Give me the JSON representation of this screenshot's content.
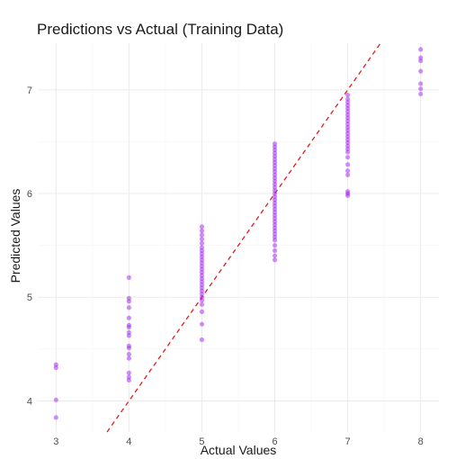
{
  "chart_data": {
    "type": "scatter",
    "title": "Predictions vs Actual (Training Data)",
    "xlabel": "Actual Values",
    "ylabel": "Predicted Values",
    "xlim": [
      2.75,
      8.25
    ],
    "ylim": [
      3.7,
      7.45
    ],
    "xticks": [
      3,
      4,
      5,
      6,
      7,
      8
    ],
    "yticks": [
      4,
      5,
      6,
      7
    ],
    "grid": true,
    "point_color": "#a020f0",
    "reference_line": {
      "slope": 1,
      "intercept": 0,
      "color": "#e41a1c",
      "style": "dashed"
    },
    "series": [
      {
        "points": [
          [
            3,
            4.35
          ],
          [
            3,
            4.32
          ],
          [
            3,
            4.01
          ],
          [
            3,
            3.84
          ],
          [
            4,
            5.19
          ],
          [
            4,
            4.99
          ],
          [
            4,
            4.96
          ],
          [
            4,
            4.9
          ],
          [
            4,
            4.8
          ],
          [
            4,
            4.73
          ],
          [
            4,
            4.71
          ],
          [
            4,
            4.66
          ],
          [
            4,
            4.63
          ],
          [
            4,
            4.53
          ],
          [
            4,
            4.51
          ],
          [
            4,
            4.45
          ],
          [
            4,
            4.41
          ],
          [
            4,
            4.27
          ],
          [
            4,
            4.23
          ],
          [
            4,
            4.2
          ],
          [
            5,
            5.68
          ],
          [
            5,
            5.64
          ],
          [
            5,
            5.6
          ],
          [
            5,
            5.56
          ],
          [
            5,
            5.52
          ],
          [
            5,
            5.48
          ],
          [
            5,
            5.45
          ],
          [
            5,
            5.42
          ],
          [
            5,
            5.39
          ],
          [
            5,
            5.36
          ],
          [
            5,
            5.33
          ],
          [
            5,
            5.3
          ],
          [
            5,
            5.27
          ],
          [
            5,
            5.24
          ],
          [
            5,
            5.21
          ],
          [
            5,
            5.18
          ],
          [
            5,
            5.15
          ],
          [
            5,
            5.12
          ],
          [
            5,
            5.09
          ],
          [
            5,
            5.06
          ],
          [
            5,
            5.03
          ],
          [
            5,
            5.0
          ],
          [
            5,
            4.97
          ],
          [
            5,
            4.93
          ],
          [
            5,
            4.86
          ],
          [
            5,
            4.74
          ],
          [
            5,
            4.59
          ],
          [
            6,
            6.48
          ],
          [
            6,
            6.45
          ],
          [
            6,
            6.42
          ],
          [
            6,
            6.39
          ],
          [
            6,
            6.36
          ],
          [
            6,
            6.33
          ],
          [
            6,
            6.3
          ],
          [
            6,
            6.27
          ],
          [
            6,
            6.24
          ],
          [
            6,
            6.21
          ],
          [
            6,
            6.18
          ],
          [
            6,
            6.15
          ],
          [
            6,
            6.12
          ],
          [
            6,
            6.09
          ],
          [
            6,
            6.06
          ],
          [
            6,
            6.03
          ],
          [
            6,
            6.0
          ],
          [
            6,
            5.97
          ],
          [
            6,
            5.94
          ],
          [
            6,
            5.91
          ],
          [
            6,
            5.88
          ],
          [
            6,
            5.85
          ],
          [
            6,
            5.82
          ],
          [
            6,
            5.79
          ],
          [
            6,
            5.76
          ],
          [
            6,
            5.73
          ],
          [
            6,
            5.7
          ],
          [
            6,
            5.67
          ],
          [
            6,
            5.64
          ],
          [
            6,
            5.61
          ],
          [
            6,
            5.58
          ],
          [
            6,
            5.55
          ],
          [
            6,
            5.5
          ],
          [
            6,
            5.45
          ],
          [
            6,
            5.4
          ],
          [
            6,
            5.36
          ],
          [
            7,
            6.95
          ],
          [
            7,
            6.91
          ],
          [
            7,
            6.88
          ],
          [
            7,
            6.85
          ],
          [
            7,
            6.82
          ],
          [
            7,
            6.79
          ],
          [
            7,
            6.76
          ],
          [
            7,
            6.73
          ],
          [
            7,
            6.7
          ],
          [
            7,
            6.67
          ],
          [
            7,
            6.64
          ],
          [
            7,
            6.61
          ],
          [
            7,
            6.58
          ],
          [
            7,
            6.55
          ],
          [
            7,
            6.52
          ],
          [
            7,
            6.49
          ],
          [
            7,
            6.46
          ],
          [
            7,
            6.43
          ],
          [
            7,
            6.4
          ],
          [
            7,
            6.35
          ],
          [
            7,
            6.28
          ],
          [
            7,
            6.22
          ],
          [
            7,
            6.18
          ],
          [
            7,
            6.02
          ],
          [
            7,
            6.0
          ],
          [
            7,
            5.98
          ],
          [
            8,
            7.39
          ],
          [
            8,
            7.31
          ],
          [
            8,
            7.28
          ],
          [
            8,
            7.18
          ],
          [
            8,
            7.06
          ],
          [
            8,
            7.01
          ],
          [
            8,
            6.96
          ]
        ]
      }
    ]
  }
}
